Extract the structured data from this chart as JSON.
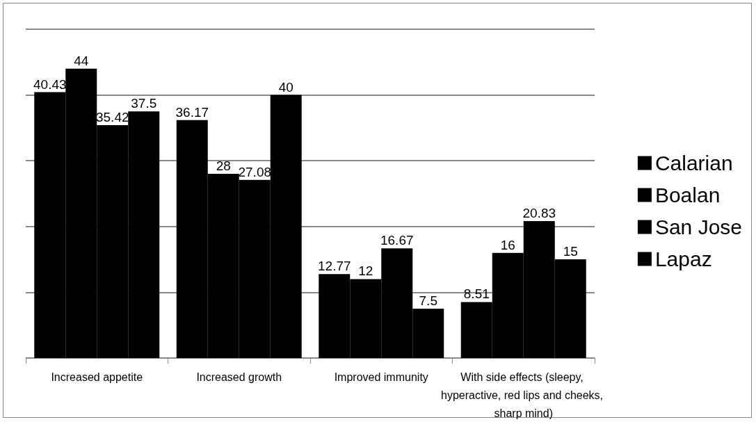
{
  "chart_data": {
    "type": "bar",
    "categories": [
      "Increased appetite",
      "Increased growth",
      "Improved immunity",
      "With side effects (sleepy, hyperactive, red lips and cheeks, sharp mind)"
    ],
    "series": [
      {
        "name": "Calarian",
        "color": "#000000",
        "values": [
          40.43,
          36.17,
          12.77,
          8.51
        ]
      },
      {
        "name": "Boalan",
        "color": "#000000",
        "values": [
          44,
          28,
          12,
          16
        ]
      },
      {
        "name": "San Jose",
        "color": "#000000",
        "values": [
          35.42,
          27.08,
          16.67,
          20.83
        ]
      },
      {
        "name": "Lapaz",
        "color": "#000000",
        "values": [
          37.5,
          40,
          7.5,
          15
        ]
      }
    ],
    "ylim": [
      0,
      50
    ],
    "yticks": [
      0,
      10,
      20,
      30,
      40,
      50
    ],
    "grid": "y",
    "tick_labels": "x",
    "legend": "right",
    "data_labels": true
  }
}
